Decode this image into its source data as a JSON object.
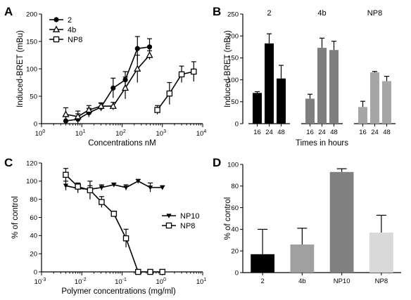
{
  "chart_data": [
    {
      "panel": "A",
      "type": "line",
      "xscale": "log",
      "xlim": [
        1,
        10000
      ],
      "ylim": [
        0,
        200
      ],
      "xlabel": "Concentrations nM",
      "ylabel": "Induced-BRET (mBu)",
      "xticks": [
        "10^0",
        "10^1",
        "10^2",
        "10^3",
        "10^4"
      ],
      "yticks": [
        0,
        50,
        100,
        150,
        200
      ],
      "legend": "top-left",
      "series": [
        {
          "name": "2",
          "marker": "circle",
          "x": [
            4,
            8,
            15,
            30,
            60,
            120,
            240,
            480
          ],
          "y": [
            5,
            8,
            20,
            30,
            65,
            80,
            137,
            140
          ],
          "err": [
            8,
            10,
            8,
            7,
            18,
            15,
            22,
            15
          ]
        },
        {
          "name": "4b",
          "marker": "triangle",
          "x": [
            4,
            8,
            15,
            30,
            60,
            120,
            240,
            480
          ],
          "y": [
            17,
            13,
            25,
            32,
            32,
            65,
            100,
            125
          ],
          "err": [
            12,
            10,
            8,
            6,
            7,
            20,
            25,
            8
          ]
        },
        {
          "name": "NP8",
          "marker": "square",
          "x": [
            750,
            1500,
            3000,
            6000
          ],
          "y": [
            25,
            55,
            90,
            95
          ],
          "err": [
            8,
            20,
            15,
            18
          ]
        }
      ]
    },
    {
      "panel": "B",
      "type": "bar",
      "ylim": [
        0,
        250
      ],
      "yticks": [
        0,
        50,
        100,
        150,
        200,
        250
      ],
      "xlabel": "Times in hours",
      "ylabel": "Induced-BRET (mBu)",
      "groups": [
        {
          "label": "2",
          "color": "#000000",
          "categories": [
            "16",
            "24",
            "48"
          ],
          "values": [
            70,
            183,
            103
          ],
          "err": [
            3,
            22,
            30
          ]
        },
        {
          "label": "4b",
          "color": "#7f7f7f",
          "categories": [
            "16",
            "24",
            "48"
          ],
          "values": [
            57,
            173,
            168
          ],
          "err": [
            10,
            22,
            20
          ]
        },
        {
          "label": "NP8",
          "color": "#a6a6a6",
          "categories": [
            "16",
            "24",
            "48"
          ],
          "values": [
            38,
            117,
            97
          ],
          "err": [
            13,
            2,
            11
          ]
        }
      ]
    },
    {
      "panel": "C",
      "type": "line",
      "xscale": "log",
      "xlim": [
        0.001,
        10
      ],
      "ylim": [
        0,
        120
      ],
      "xlabel": "Polymer concentrations (mg/ml)",
      "ylabel": "% of control",
      "xticks": [
        "10^-3",
        "10^-2",
        "10^-1",
        "10^0",
        "10^1"
      ],
      "yticks": [
        0,
        20,
        40,
        60,
        80,
        100,
        120
      ],
      "legend": "center-right",
      "series": [
        {
          "name": "NP10",
          "marker": "triangle-down",
          "x": [
            0.004,
            0.008,
            0.016,
            0.031,
            0.0625,
            0.125,
            0.25,
            0.5,
            1
          ],
          "y": [
            95,
            92,
            91,
            93,
            96,
            93,
            100,
            93,
            93
          ],
          "err": [
            5,
            5,
            4,
            3,
            2,
            3,
            2,
            5,
            2
          ]
        },
        {
          "name": "NP8",
          "marker": "square",
          "x": [
            0.004,
            0.008,
            0.016,
            0.031,
            0.0625,
            0.125,
            0.25,
            0.5,
            1
          ],
          "y": [
            107,
            94,
            90,
            77,
            64,
            37,
            0,
            0,
            0
          ],
          "err": [
            7,
            4,
            10,
            6,
            3,
            10,
            0,
            0,
            0
          ]
        }
      ]
    },
    {
      "panel": "D",
      "type": "bar",
      "ylim": [
        0,
        100
      ],
      "yticks": [
        0,
        20,
        40,
        60,
        80,
        100
      ],
      "ylabel": "% of control",
      "categories": [
        "2",
        "4b",
        "NP10",
        "NP8"
      ],
      "values": [
        17,
        26,
        93,
        37
      ],
      "err": [
        23,
        15,
        3,
        16
      ],
      "colors": [
        "#000000",
        "#a0a0a0",
        "#808080",
        "#d9d9d9"
      ]
    }
  ]
}
